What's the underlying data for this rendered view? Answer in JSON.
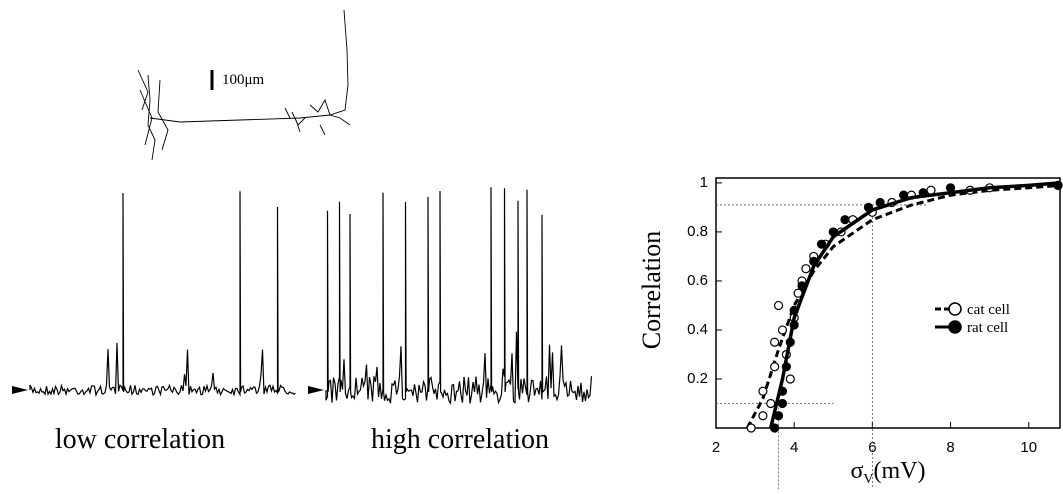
{
  "figure": {
    "scale_bar": "100μm",
    "trace_labels": [
      "low correlation",
      "high correlation"
    ]
  },
  "chart_data": {
    "type": "scatter",
    "y_label": "Correlation",
    "x_label": {
      "symbol": "σ",
      "subscript": "V",
      "unit": "(mV)"
    },
    "xlim": [
      2,
      10.8
    ],
    "xticks": [
      2,
      4,
      6,
      8,
      10
    ],
    "ylim": [
      0,
      1.02
    ],
    "yticks": [
      0.2,
      0.4,
      0.6,
      0.8,
      1
    ],
    "legend": "right",
    "reference_lines": [
      {
        "x": 6,
        "y": 0.91
      },
      {
        "x": 3.6,
        "y": 0.1
      }
    ],
    "series": [
      {
        "name": "cat cell",
        "color": "#000000",
        "marker": "open",
        "line": "dashed",
        "x": [
          2.9,
          3.2,
          3.2,
          3.4,
          3.5,
          3.5,
          3.6,
          3.7,
          3.8,
          3.9,
          4.0,
          4.1,
          4.2,
          4.3,
          4.5,
          4.8,
          5.2,
          5.5,
          6.0,
          6.5,
          7.0,
          7.5,
          8.5,
          9.0,
          10.75
        ],
        "values": [
          0.0,
          0.05,
          0.15,
          0.1,
          0.25,
          0.35,
          0.5,
          0.4,
          0.3,
          0.2,
          0.45,
          0.55,
          0.6,
          0.65,
          0.7,
          0.75,
          0.8,
          0.85,
          0.88,
          0.92,
          0.95,
          0.97,
          0.97,
          0.98,
          0.99
        ],
        "fit_x": [
          2.8,
          3.2,
          3.6,
          4,
          4.5,
          5,
          6,
          7,
          8,
          9,
          10,
          10.8
        ],
        "fit_values": [
          0,
          0.12,
          0.32,
          0.5,
          0.64,
          0.74,
          0.85,
          0.91,
          0.95,
          0.97,
          0.98,
          0.99
        ]
      },
      {
        "name": "rat cell",
        "color": "#000000",
        "marker": "filled",
        "line": "solid",
        "x": [
          3.5,
          3.6,
          3.7,
          3.7,
          3.8,
          3.9,
          4.0,
          4.0,
          4.2,
          4.5,
          4.7,
          5.0,
          5.3,
          5.9,
          6.2,
          6.8,
          7.3,
          8.0,
          10.75
        ],
        "values": [
          0.0,
          0.05,
          0.1,
          0.15,
          0.25,
          0.35,
          0.42,
          0.48,
          0.58,
          0.68,
          0.75,
          0.8,
          0.85,
          0.9,
          0.92,
          0.95,
          0.96,
          0.98,
          0.99
        ],
        "fit_x": [
          3.4,
          3.7,
          4,
          4.5,
          5,
          6,
          7,
          8,
          9,
          10,
          10.8
        ],
        "fit_values": [
          0,
          0.2,
          0.45,
          0.66,
          0.78,
          0.89,
          0.94,
          0.96,
          0.98,
          0.99,
          1.0
        ]
      }
    ]
  }
}
